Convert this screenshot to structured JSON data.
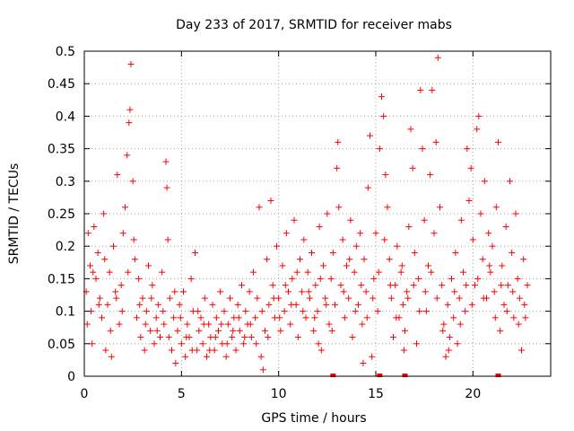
{
  "chart_data": {
    "type": "scatter",
    "title": "Day 233 of 2017, SRMTID for receiver mabs",
    "xlabel": "GPS time / hours",
    "ylabel": "SRMTID / TECUs",
    "xlim": [
      0,
      24
    ],
    "ylim": [
      0,
      0.5
    ],
    "xticks": [
      0,
      5,
      10,
      15,
      20
    ],
    "xtick_labels": [
      "0",
      "5",
      "10",
      "15",
      "20"
    ],
    "yticks": [
      0,
      0.05,
      0.1,
      0.15,
      0.2,
      0.25,
      0.3,
      0.35,
      0.4,
      0.45,
      0.5
    ],
    "ytick_labels": [
      "0",
      "0.05",
      "0.1",
      "0.15",
      "0.2",
      "0.25",
      "0.3",
      "0.35",
      "0.4",
      "0.45",
      "0.5"
    ],
    "grid": true,
    "marker": "+",
    "color": "#ff0000",
    "series": [
      {
        "name": "SRMTID",
        "points": [
          [
            0.1,
            0.13
          ],
          [
            0.2,
            0.22
          ],
          [
            0.3,
            0.17
          ],
          [
            0.35,
            0.1
          ],
          [
            0.4,
            0.05
          ],
          [
            0.5,
            0.23
          ],
          [
            0.6,
            0.15
          ],
          [
            0.7,
            0.19
          ],
          [
            0.8,
            0.12
          ],
          [
            0.9,
            0.09
          ],
          [
            1.0,
            0.25
          ],
          [
            1.1,
            0.04
          ],
          [
            1.2,
            0.11
          ],
          [
            1.3,
            0.16
          ],
          [
            1.4,
            0.03
          ],
          [
            1.5,
            0.2
          ],
          [
            1.6,
            0.13
          ],
          [
            1.7,
            0.31
          ],
          [
            1.8,
            0.08
          ],
          [
            1.9,
            0.14
          ],
          [
            2.0,
            0.22
          ],
          [
            2.1,
            0.26
          ],
          [
            2.2,
            0.34
          ],
          [
            2.3,
            0.39
          ],
          [
            2.35,
            0.41
          ],
          [
            2.4,
            0.48
          ],
          [
            2.5,
            0.3
          ],
          [
            2.6,
            0.18
          ],
          [
            2.7,
            0.09
          ],
          [
            2.8,
            0.15
          ],
          [
            2.9,
            0.06
          ],
          [
            3.0,
            0.12
          ],
          [
            3.1,
            0.04
          ],
          [
            3.2,
            0.1
          ],
          [
            3.3,
            0.17
          ],
          [
            3.4,
            0.07
          ],
          [
            3.5,
            0.14
          ],
          [
            3.6,
            0.05
          ],
          [
            3.7,
            0.09
          ],
          [
            3.8,
            0.11
          ],
          [
            3.9,
            0.06
          ],
          [
            4.0,
            0.16
          ],
          [
            4.1,
            0.08
          ],
          [
            4.2,
            0.33
          ],
          [
            4.25,
            0.29
          ],
          [
            4.3,
            0.21
          ],
          [
            4.4,
            0.12
          ],
          [
            4.5,
            0.04
          ],
          [
            4.6,
            0.09
          ],
          [
            4.7,
            0.02
          ],
          [
            4.8,
            0.07
          ],
          [
            4.9,
            0.11
          ],
          [
            5.0,
            0.05
          ],
          [
            5.1,
            0.13
          ],
          [
            5.2,
            0.03
          ],
          [
            5.3,
            0.08
          ],
          [
            5.4,
            0.06
          ],
          [
            5.5,
            0.15
          ],
          [
            5.6,
            0.1
          ],
          [
            5.7,
            0.19
          ],
          [
            5.8,
            0.04
          ],
          [
            5.9,
            0.07
          ],
          [
            6.0,
            0.09
          ],
          [
            6.1,
            0.05
          ],
          [
            6.2,
            0.12
          ],
          [
            6.3,
            0.03
          ],
          [
            6.4,
            0.08
          ],
          [
            6.5,
            0.06
          ],
          [
            6.6,
            0.11
          ],
          [
            6.7,
            0.04
          ],
          [
            6.8,
            0.09
          ],
          [
            6.9,
            0.07
          ],
          [
            7.0,
            0.13
          ],
          [
            7.1,
            0.05
          ],
          [
            7.2,
            0.1
          ],
          [
            7.3,
            0.03
          ],
          [
            7.4,
            0.08
          ],
          [
            7.5,
            0.12
          ],
          [
            7.6,
            0.06
          ],
          [
            7.7,
            0.09
          ],
          [
            7.8,
            0.04
          ],
          [
            7.9,
            0.11
          ],
          [
            8.0,
            0.07
          ],
          [
            8.1,
            0.14
          ],
          [
            8.2,
            0.05
          ],
          [
            8.3,
            0.1
          ],
          [
            8.4,
            0.08
          ],
          [
            8.5,
            0.13
          ],
          [
            8.6,
            0.06
          ],
          [
            8.7,
            0.16
          ],
          [
            8.8,
            0.09
          ],
          [
            8.9,
            0.12
          ],
          [
            9.0,
            0.26
          ],
          [
            9.1,
            0.03
          ],
          [
            9.2,
            0.01
          ],
          [
            9.3,
            0.07
          ],
          [
            9.4,
            0.18
          ],
          [
            9.5,
            0.11
          ],
          [
            9.6,
            0.27
          ],
          [
            9.7,
            0.14
          ],
          [
            9.8,
            0.09
          ],
          [
            9.9,
            0.2
          ],
          [
            10.0,
            0.12
          ],
          [
            10.1,
            0.07
          ],
          [
            10.2,
            0.17
          ],
          [
            10.3,
            0.1
          ],
          [
            10.4,
            0.22
          ],
          [
            10.5,
            0.13
          ],
          [
            10.6,
            0.08
          ],
          [
            10.7,
            0.15
          ],
          [
            10.8,
            0.24
          ],
          [
            10.9,
            0.11
          ],
          [
            11.0,
            0.06
          ],
          [
            11.1,
            0.18
          ],
          [
            11.2,
            0.13
          ],
          [
            11.3,
            0.21
          ],
          [
            11.4,
            0.09
          ],
          [
            11.5,
            0.16
          ],
          [
            11.6,
            0.12
          ],
          [
            11.7,
            0.19
          ],
          [
            11.8,
            0.07
          ],
          [
            11.9,
            0.14
          ],
          [
            12.0,
            0.1
          ],
          [
            12.1,
            0.23
          ],
          [
            12.2,
            0.04
          ],
          [
            12.3,
            0.17
          ],
          [
            12.4,
            0.12
          ],
          [
            12.5,
            0.25
          ],
          [
            12.6,
            0.08
          ],
          [
            12.7,
            0.15
          ],
          [
            12.8,
            0.19
          ],
          [
            12.9,
            0.11
          ],
          [
            13.0,
            0.32
          ],
          [
            13.05,
            0.36
          ],
          [
            13.1,
            0.26
          ],
          [
            13.2,
            0.14
          ],
          [
            13.3,
            0.21
          ],
          [
            13.4,
            0.09
          ],
          [
            13.5,
            0.17
          ],
          [
            13.6,
            0.12
          ],
          [
            13.7,
            0.24
          ],
          [
            13.8,
            0.06
          ],
          [
            13.9,
            0.16
          ],
          [
            14.0,
            0.2
          ],
          [
            14.1,
            0.11
          ],
          [
            14.2,
            0.22
          ],
          [
            14.3,
            0.08
          ],
          [
            14.4,
            0.18
          ],
          [
            14.5,
            0.13
          ],
          [
            14.6,
            0.29
          ],
          [
            14.7,
            0.37
          ],
          [
            14.8,
            0.03
          ],
          [
            14.9,
            0.15
          ],
          [
            15.0,
            0.22
          ],
          [
            15.1,
            0.1
          ],
          [
            15.2,
            0.35
          ],
          [
            15.3,
            0.43
          ],
          [
            15.4,
            0.4
          ],
          [
            15.5,
            0.31
          ],
          [
            15.6,
            0.26
          ],
          [
            15.7,
            0.18
          ],
          [
            15.8,
            0.12
          ],
          [
            15.9,
            0.06
          ],
          [
            16.0,
            0.14
          ],
          [
            16.1,
            0.2
          ],
          [
            16.2,
            0.09
          ],
          [
            16.3,
            0.16
          ],
          [
            16.4,
            0.11
          ],
          [
            16.5,
            0.07
          ],
          [
            16.6,
            0.13
          ],
          [
            16.7,
            0.23
          ],
          [
            16.8,
            0.38
          ],
          [
            16.9,
            0.32
          ],
          [
            17.0,
            0.19
          ],
          [
            17.1,
            0.05
          ],
          [
            17.2,
            0.15
          ],
          [
            17.3,
            0.44
          ],
          [
            17.4,
            0.35
          ],
          [
            17.5,
            0.24
          ],
          [
            17.6,
            0.1
          ],
          [
            17.7,
            0.17
          ],
          [
            17.8,
            0.31
          ],
          [
            17.9,
            0.44
          ],
          [
            18.0,
            0.22
          ],
          [
            18.1,
            0.36
          ],
          [
            18.2,
            0.49
          ],
          [
            18.3,
            0.26
          ],
          [
            18.4,
            0.14
          ],
          [
            18.5,
            0.08
          ],
          [
            18.6,
            0.03
          ],
          [
            18.7,
            0.11
          ],
          [
            18.8,
            0.06
          ],
          [
            18.9,
            0.15
          ],
          [
            19.0,
            0.09
          ],
          [
            19.1,
            0.19
          ],
          [
            19.2,
            0.05
          ],
          [
            19.3,
            0.12
          ],
          [
            19.4,
            0.24
          ],
          [
            19.5,
            0.16
          ],
          [
            19.6,
            0.1
          ],
          [
            19.7,
            0.35
          ],
          [
            19.8,
            0.27
          ],
          [
            19.9,
            0.32
          ],
          [
            20.0,
            0.21
          ],
          [
            20.1,
            0.14
          ],
          [
            20.2,
            0.38
          ],
          [
            20.3,
            0.4
          ],
          [
            20.4,
            0.25
          ],
          [
            20.5,
            0.18
          ],
          [
            20.6,
            0.3
          ],
          [
            20.7,
            0.12
          ],
          [
            20.8,
            0.22
          ],
          [
            20.9,
            0.16
          ],
          [
            21.0,
            0.2
          ],
          [
            21.1,
            0.13
          ],
          [
            21.2,
            0.26
          ],
          [
            21.3,
            0.36
          ],
          [
            21.4,
            0.07
          ],
          [
            21.5,
            0.17
          ],
          [
            21.6,
            0.11
          ],
          [
            21.7,
            0.23
          ],
          [
            21.8,
            0.14
          ],
          [
            21.9,
            0.3
          ],
          [
            22.0,
            0.19
          ],
          [
            22.1,
            0.09
          ],
          [
            22.2,
            0.25
          ],
          [
            22.3,
            0.15
          ],
          [
            22.4,
            0.12
          ],
          [
            22.5,
            0.04
          ],
          [
            22.6,
            0.18
          ],
          [
            22.7,
            0.09
          ],
          [
            22.8,
            0.14
          ],
          [
            0.15,
            0.08
          ],
          [
            0.45,
            0.16
          ],
          [
            0.75,
            0.11
          ],
          [
            1.05,
            0.18
          ],
          [
            1.35,
            0.07
          ],
          [
            1.65,
            0.12
          ],
          [
            1.95,
            0.1
          ],
          [
            2.25,
            0.16
          ],
          [
            2.55,
            0.21
          ],
          [
            2.85,
            0.11
          ],
          [
            3.15,
            0.08
          ],
          [
            3.45,
            0.12
          ],
          [
            3.75,
            0.07
          ],
          [
            4.05,
            0.1
          ],
          [
            4.35,
            0.06
          ],
          [
            4.65,
            0.13
          ],
          [
            4.95,
            0.09
          ],
          [
            5.25,
            0.06
          ],
          [
            5.55,
            0.04
          ],
          [
            5.85,
            0.1
          ],
          [
            6.15,
            0.08
          ],
          [
            6.45,
            0.04
          ],
          [
            6.75,
            0.06
          ],
          [
            7.05,
            0.08
          ],
          [
            7.35,
            0.05
          ],
          [
            7.65,
            0.07
          ],
          [
            7.95,
            0.09
          ],
          [
            8.25,
            0.06
          ],
          [
            8.55,
            0.08
          ],
          [
            8.85,
            0.05
          ],
          [
            9.15,
            0.1
          ],
          [
            9.45,
            0.06
          ],
          [
            9.75,
            0.12
          ],
          [
            10.05,
            0.09
          ],
          [
            10.35,
            0.14
          ],
          [
            10.65,
            0.11
          ],
          [
            10.95,
            0.16
          ],
          [
            11.25,
            0.1
          ],
          [
            11.55,
            0.13
          ],
          [
            11.85,
            0.09
          ],
          [
            12.15,
            0.15
          ],
          [
            12.45,
            0.11
          ],
          [
            12.75,
            0.07
          ],
          [
            13.35,
            0.13
          ],
          [
            13.65,
            0.18
          ],
          [
            13.95,
            0.1
          ],
          [
            14.25,
            0.14
          ],
          [
            14.55,
            0.09
          ],
          [
            14.85,
            0.12
          ],
          [
            15.15,
            0.16
          ],
          [
            15.45,
            0.21
          ],
          [
            15.75,
            0.14
          ],
          [
            16.05,
            0.09
          ],
          [
            16.35,
            0.17
          ],
          [
            16.65,
            0.12
          ],
          [
            16.95,
            0.14
          ],
          [
            17.25,
            0.1
          ],
          [
            17.55,
            0.13
          ],
          [
            17.85,
            0.16
          ],
          [
            18.15,
            0.12
          ],
          [
            18.45,
            0.07
          ],
          [
            18.75,
            0.04
          ],
          [
            19.05,
            0.13
          ],
          [
            19.35,
            0.08
          ],
          [
            19.65,
            0.14
          ],
          [
            19.95,
            0.11
          ],
          [
            20.25,
            0.15
          ],
          [
            20.55,
            0.12
          ],
          [
            20.85,
            0.17
          ],
          [
            21.15,
            0.09
          ],
          [
            21.45,
            0.14
          ],
          [
            21.75,
            0.1
          ],
          [
            22.05,
            0.13
          ],
          [
            22.35,
            0.08
          ],
          [
            22.65,
            0.11
          ],
          [
            12.05,
            0.05
          ],
          [
            14.35,
            0.02
          ],
          [
            16.45,
            0.04
          ]
        ]
      }
    ],
    "baseline_markers_x": [
      12.8,
      15.2,
      16.5,
      21.3
    ]
  }
}
